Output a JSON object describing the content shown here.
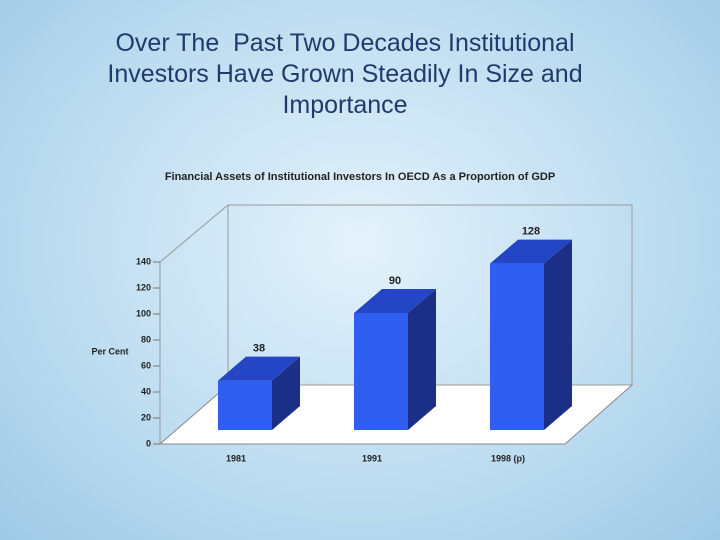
{
  "slide": {
    "title": "Over The  Past Two Decades Institutional Investors Have Grown Steadily In Size and Importance"
  },
  "chart_data": {
    "type": "bar3d",
    "title": "Financial Assets of Institutional Investors  In OECD  As a  Proportion of GDP",
    "y_label": "Per Cent",
    "categories": [
      "1981",
      "1991",
      "1998 (p)"
    ],
    "values": [
      38,
      90,
      128
    ],
    "color": "#2f5ff0",
    "ylim": [
      0,
      140
    ],
    "yticks": [
      0,
      20,
      40,
      60,
      80,
      100,
      120,
      140
    ]
  }
}
